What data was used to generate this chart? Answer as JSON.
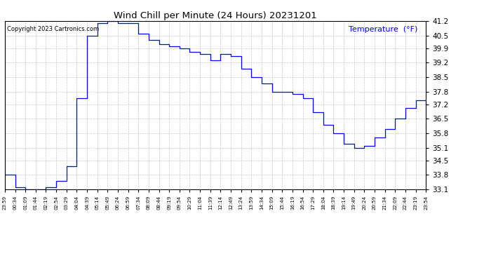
{
  "title": "Wind Chill per Minute (24 Hours) 20231201",
  "ylabel": "Temperature  (°F)",
  "copyright_text": "Copyright 2023 Cartronics.com",
  "line_color": "blue",
  "bg_color": "white",
  "grid_color": "#bbbbbb",
  "ylim": [
    33.1,
    41.2
  ],
  "yticks": [
    33.1,
    33.8,
    34.5,
    35.1,
    35.8,
    36.5,
    37.2,
    37.8,
    38.5,
    39.2,
    39.9,
    40.5,
    41.2
  ],
  "x_labels": [
    "23:59",
    "00:34",
    "01:09",
    "01:44",
    "02:19",
    "02:54",
    "03:29",
    "04:04",
    "04:39",
    "05:14",
    "05:49",
    "06:24",
    "06:59",
    "07:34",
    "08:09",
    "08:44",
    "09:19",
    "09:54",
    "10:29",
    "11:04",
    "11:39",
    "12:14",
    "12:49",
    "13:24",
    "13:59",
    "14:34",
    "15:09",
    "15:44",
    "16:19",
    "16:54",
    "17:29",
    "18:04",
    "18:39",
    "19:14",
    "19:49",
    "20:24",
    "20:59",
    "21:34",
    "22:09",
    "22:44",
    "23:19",
    "23:54"
  ],
  "key_values": [
    33.8,
    33.2,
    33.1,
    33.1,
    33.2,
    33.5,
    34.2,
    37.5,
    40.5,
    41.1,
    41.2,
    41.1,
    41.1,
    40.6,
    40.3,
    40.1,
    40.0,
    39.9,
    39.7,
    39.6,
    39.3,
    39.6,
    39.5,
    38.9,
    38.5,
    38.2,
    37.8,
    37.8,
    37.7,
    37.5,
    36.8,
    36.2,
    35.8,
    35.3,
    35.1,
    35.2,
    35.6,
    36.0,
    36.5,
    37.0,
    37.4,
    37.2
  ]
}
